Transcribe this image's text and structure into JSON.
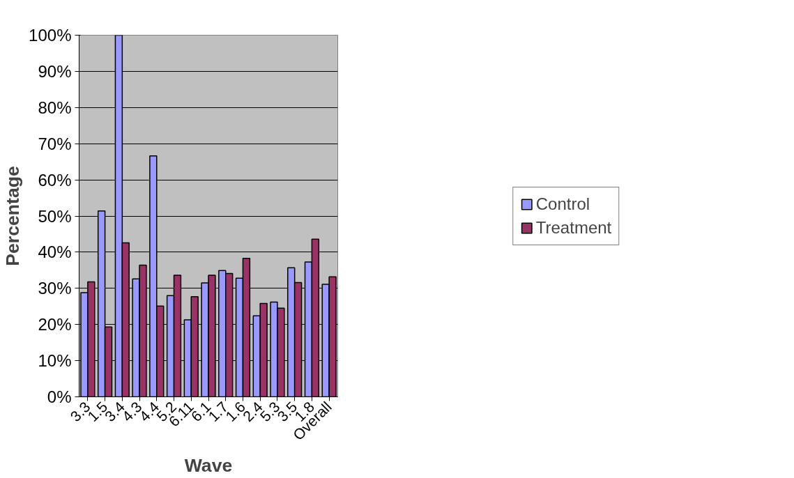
{
  "chart_data": {
    "type": "bar",
    "xlabel": "Wave",
    "ylabel": "Percentage",
    "categories": [
      "3.3",
      "1.5",
      "3.4",
      "4.3",
      "4.4",
      "5.2",
      "6.11",
      "6.1",
      "1.7",
      "1.6",
      "2.4",
      "5.3",
      "3.5",
      "1.8",
      "Overall"
    ],
    "series": [
      {
        "name": "Control",
        "color": "#9999ff",
        "values": [
          28.8,
          51.4,
          100,
          32.6,
          66.6,
          28.0,
          21.3,
          31.5,
          34.9,
          32.8,
          22.4,
          26.2,
          35.7,
          37.3,
          31.1
        ]
      },
      {
        "name": "Treatment",
        "color": "#993366",
        "values": [
          31.8,
          19.3,
          42.6,
          36.4,
          25.1,
          33.6,
          27.7,
          33.6,
          34.1,
          38.3,
          25.8,
          24.5,
          31.6,
          43.6,
          33.2
        ]
      }
    ],
    "ylim": [
      0,
      100
    ],
    "yticks": [
      {
        "value": 0,
        "label": "0%"
      },
      {
        "value": 10,
        "label": "10%"
      },
      {
        "value": 20,
        "label": "20%"
      },
      {
        "value": 30,
        "label": "30%"
      },
      {
        "value": 40,
        "label": "40%"
      },
      {
        "value": 50,
        "label": "50%"
      },
      {
        "value": 60,
        "label": "60%"
      },
      {
        "value": 70,
        "label": "70%"
      },
      {
        "value": 80,
        "label": "80%"
      },
      {
        "value": 90,
        "label": "90%"
      },
      {
        "value": 100,
        "label": "100%"
      }
    ],
    "grid": "y",
    "legend": "right"
  }
}
